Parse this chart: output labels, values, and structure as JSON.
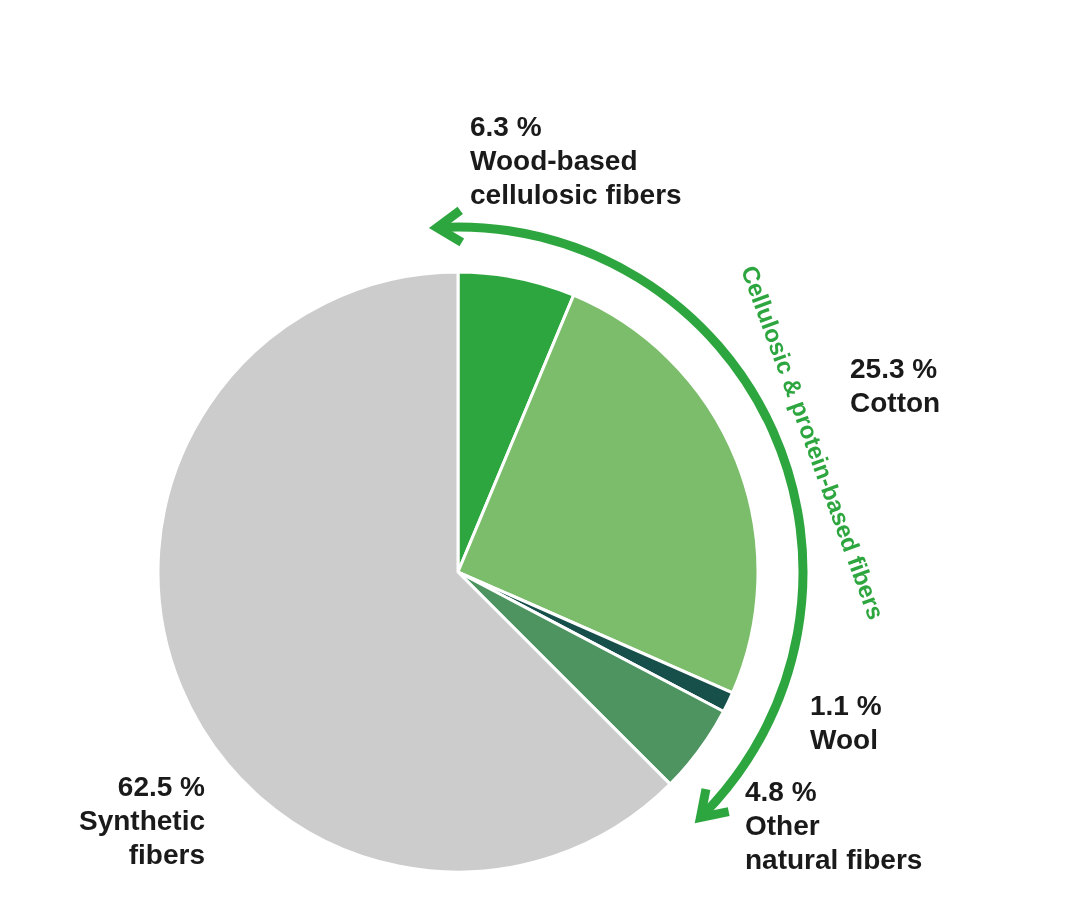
{
  "chart_data": {
    "type": "pie",
    "categories": [
      "Wood-based\ncellulosic fibers",
      "Cotton",
      "Wool",
      "Other\nnatural fibers",
      "Synthetic\nfibers"
    ],
    "values": [
      6.3,
      25.3,
      1.1,
      4.8,
      62.5
    ],
    "value_labels": [
      "6.3 %",
      "25.3 %",
      "1.1 %",
      "4.8 %",
      "62.5 %"
    ],
    "colors": [
      "#2ea63f",
      "#7cbd6b",
      "#174f4a",
      "#4d9461",
      "#cccccc"
    ],
    "annotations": [
      "Cellulosic & protein-based fibers"
    ],
    "legend": false
  }
}
